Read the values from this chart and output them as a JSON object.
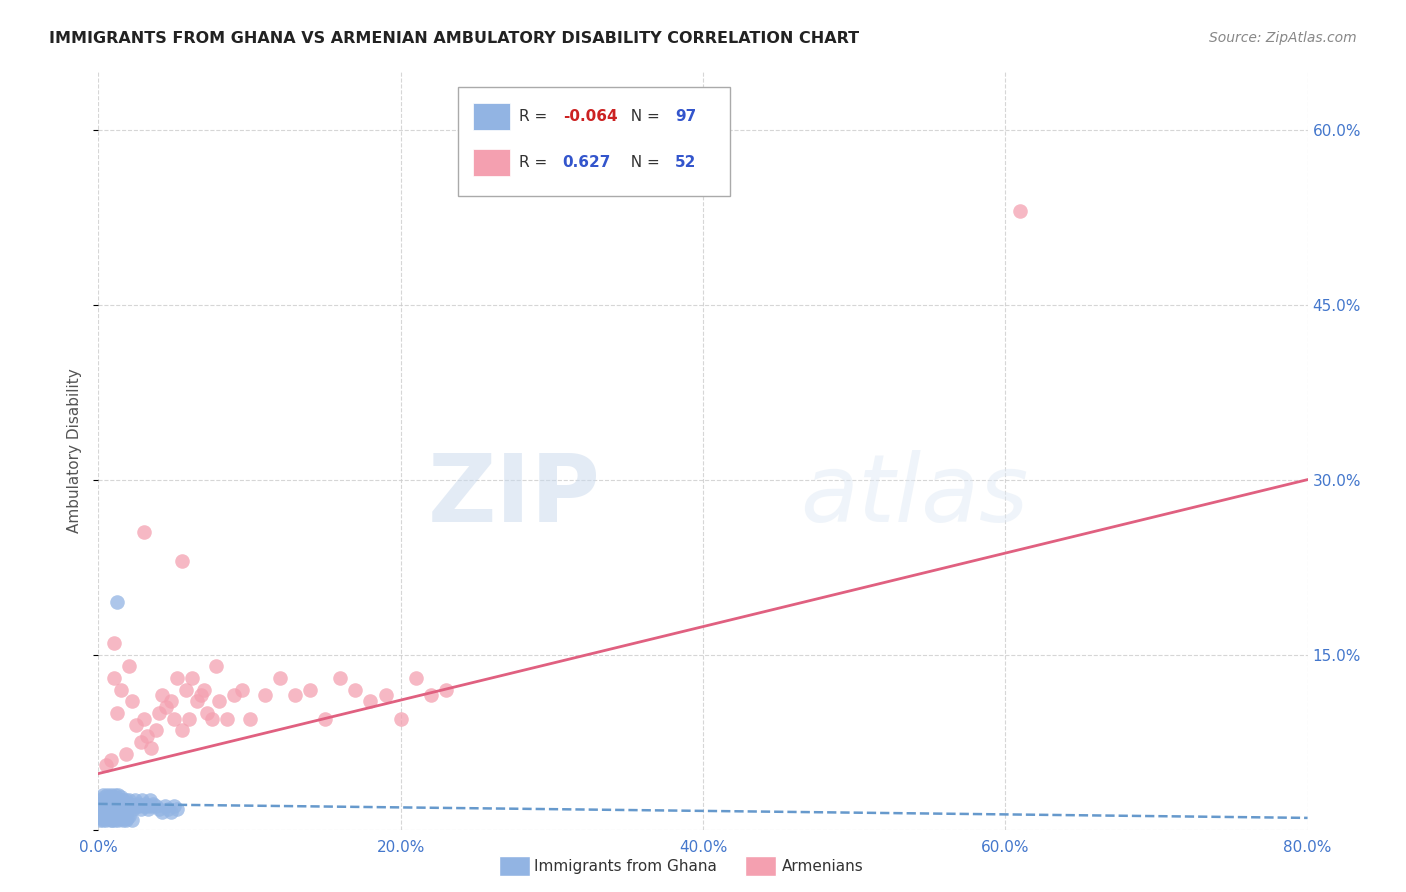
{
  "title": "IMMIGRANTS FROM GHANA VS ARMENIAN AMBULATORY DISABILITY CORRELATION CHART",
  "source": "Source: ZipAtlas.com",
  "ylabel": "Ambulatory Disability",
  "xlim": [
    0.0,
    0.8
  ],
  "ylim": [
    0.0,
    0.65
  ],
  "yticks": [
    0.0,
    0.15,
    0.3,
    0.45,
    0.6
  ],
  "xticks": [
    0.0,
    0.2,
    0.4,
    0.6,
    0.8
  ],
  "xtick_labels": [
    "0.0%",
    "20.0%",
    "40.0%",
    "60.0%",
    "80.0%"
  ],
  "right_ytick_labels": [
    "",
    "15.0%",
    "30.0%",
    "45.0%",
    "60.0%"
  ],
  "ghana_color": "#92b4e3",
  "armenian_color": "#f4a0b0",
  "ghana_line_color": "#6699cc",
  "armenian_line_color": "#e06080",
  "legend_ghana_R": "-0.064",
  "legend_ghana_N": "97",
  "legend_armenian_R": "0.627",
  "legend_armenian_N": "52",
  "watermark_zip": "ZIP",
  "watermark_atlas": "atlas",
  "background_color": "#ffffff",
  "grid_color": "#cccccc",
  "axis_label_color": "#4477cc",
  "ghana_scatter_x": [
    0.001,
    0.001,
    0.002,
    0.002,
    0.003,
    0.003,
    0.004,
    0.004,
    0.005,
    0.005,
    0.005,
    0.006,
    0.006,
    0.007,
    0.007,
    0.007,
    0.008,
    0.008,
    0.008,
    0.009,
    0.009,
    0.009,
    0.01,
    0.01,
    0.01,
    0.011,
    0.011,
    0.012,
    0.012,
    0.012,
    0.013,
    0.013,
    0.014,
    0.014,
    0.015,
    0.015,
    0.016,
    0.016,
    0.017,
    0.017,
    0.018,
    0.018,
    0.019,
    0.019,
    0.02,
    0.02,
    0.021,
    0.022,
    0.023,
    0.024,
    0.025,
    0.026,
    0.027,
    0.028,
    0.029,
    0.03,
    0.031,
    0.032,
    0.033,
    0.034,
    0.035,
    0.036,
    0.038,
    0.04,
    0.042,
    0.044,
    0.046,
    0.048,
    0.05,
    0.052,
    0.001,
    0.002,
    0.002,
    0.003,
    0.004,
    0.004,
    0.005,
    0.006,
    0.006,
    0.007,
    0.008,
    0.008,
    0.009,
    0.01,
    0.01,
    0.011,
    0.012,
    0.013,
    0.014,
    0.015,
    0.016,
    0.017,
    0.018,
    0.019,
    0.02,
    0.022,
    0.012
  ],
  "ghana_scatter_y": [
    0.02,
    0.025,
    0.022,
    0.018,
    0.03,
    0.015,
    0.028,
    0.02,
    0.025,
    0.022,
    0.018,
    0.03,
    0.015,
    0.025,
    0.02,
    0.028,
    0.022,
    0.018,
    0.03,
    0.025,
    0.02,
    0.015,
    0.028,
    0.022,
    0.018,
    0.025,
    0.03,
    0.02,
    0.025,
    0.018,
    0.022,
    0.03,
    0.025,
    0.018,
    0.022,
    0.028,
    0.02,
    0.025,
    0.022,
    0.018,
    0.025,
    0.02,
    0.022,
    0.018,
    0.025,
    0.02,
    0.022,
    0.02,
    0.018,
    0.025,
    0.02,
    0.022,
    0.02,
    0.018,
    0.025,
    0.02,
    0.022,
    0.02,
    0.018,
    0.025,
    0.02,
    0.022,
    0.02,
    0.018,
    0.015,
    0.02,
    0.018,
    0.015,
    0.02,
    0.018,
    0.008,
    0.01,
    0.012,
    0.008,
    0.01,
    0.012,
    0.008,
    0.01,
    0.012,
    0.015,
    0.008,
    0.01,
    0.008,
    0.01,
    0.012,
    0.008,
    0.01,
    0.008,
    0.01,
    0.012,
    0.008,
    0.01,
    0.008,
    0.01,
    0.012,
    0.008,
    0.195
  ],
  "armenian_scatter_x": [
    0.005,
    0.008,
    0.01,
    0.012,
    0.015,
    0.018,
    0.02,
    0.022,
    0.025,
    0.028,
    0.03,
    0.032,
    0.035,
    0.038,
    0.04,
    0.042,
    0.045,
    0.048,
    0.05,
    0.052,
    0.055,
    0.058,
    0.06,
    0.062,
    0.065,
    0.068,
    0.07,
    0.072,
    0.075,
    0.078,
    0.08,
    0.085,
    0.09,
    0.095,
    0.1,
    0.11,
    0.12,
    0.13,
    0.14,
    0.15,
    0.16,
    0.17,
    0.18,
    0.19,
    0.2,
    0.21,
    0.22,
    0.23,
    0.01,
    0.03,
    0.055,
    0.61
  ],
  "armenian_scatter_y": [
    0.055,
    0.06,
    0.13,
    0.1,
    0.12,
    0.065,
    0.14,
    0.11,
    0.09,
    0.075,
    0.095,
    0.08,
    0.07,
    0.085,
    0.1,
    0.115,
    0.105,
    0.11,
    0.095,
    0.13,
    0.085,
    0.12,
    0.095,
    0.13,
    0.11,
    0.115,
    0.12,
    0.1,
    0.095,
    0.14,
    0.11,
    0.095,
    0.115,
    0.12,
    0.095,
    0.115,
    0.13,
    0.115,
    0.12,
    0.095,
    0.13,
    0.12,
    0.11,
    0.115,
    0.095,
    0.13,
    0.115,
    0.12,
    0.16,
    0.255,
    0.23,
    0.53
  ],
  "ghana_line_x": [
    0.0,
    0.8
  ],
  "ghana_line_y": [
    0.022,
    0.01
  ],
  "armenian_line_x": [
    0.0,
    0.8
  ],
  "armenian_line_y": [
    0.048,
    0.3
  ]
}
